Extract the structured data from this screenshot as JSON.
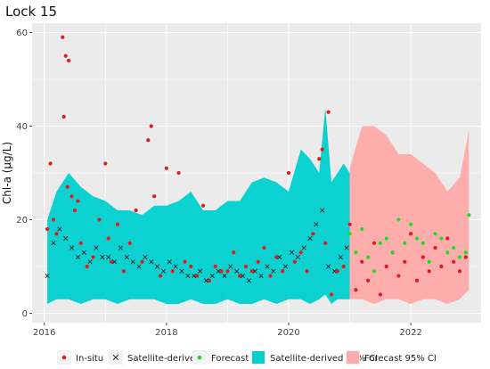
{
  "chart_data": {
    "type": "scatter",
    "title": "Lock 15",
    "xlabel": "",
    "ylabel": "Chl-a (µg/L)",
    "xlim": [
      2015.8,
      2023.15
    ],
    "ylim": [
      -2,
      62
    ],
    "x_ticks": [
      2016,
      2018,
      2020,
      2022
    ],
    "x_tick_labels": [
      "2016",
      "2018",
      "2020",
      "2022"
    ],
    "y_ticks": [
      0,
      20,
      40,
      60
    ],
    "y_tick_labels": [
      "0",
      "20",
      "40",
      "60"
    ],
    "grid": true,
    "legend_position": "bottom",
    "legend": [
      {
        "label": "In-situ",
        "kind": "point",
        "color": "#e41a1c"
      },
      {
        "label": "Satellite-derived",
        "kind": "cross",
        "color": "#222222"
      },
      {
        "label": "Forecast",
        "kind": "point",
        "color": "#22dd22"
      },
      {
        "label": "Satellite-derived 95% CI",
        "kind": "band",
        "color": "#00d0d0"
      },
      {
        "label": "Forecast 95% CI",
        "kind": "band",
        "color": "#ffaaaa"
      }
    ],
    "series": [
      {
        "name": "Satellite-derived 95% CI",
        "kind": "band",
        "color": "#00d0d0",
        "x": [
          2016.05,
          2016.2,
          2016.4,
          2016.6,
          2016.8,
          2017.0,
          2017.2,
          2017.4,
          2017.6,
          2017.8,
          2018.0,
          2018.2,
          2018.4,
          2018.6,
          2018.8,
          2019.0,
          2019.2,
          2019.4,
          2019.6,
          2019.8,
          2020.0,
          2020.2,
          2020.35,
          2020.5,
          2020.6,
          2020.7,
          2020.8,
          2020.9,
          2021.0
        ],
        "lower": [
          2,
          3,
          3,
          2,
          3,
          3,
          2,
          3,
          3,
          3,
          2,
          2,
          3,
          2,
          2,
          3,
          2,
          2,
          3,
          2,
          3,
          3,
          2,
          3,
          4,
          2,
          3,
          3,
          3
        ],
        "upper": [
          20,
          26,
          30,
          27,
          25,
          24,
          22,
          22,
          21,
          23,
          23,
          24,
          26,
          22,
          22,
          24,
          24,
          28,
          29,
          28,
          26,
          35,
          33,
          30,
          44,
          28,
          30,
          32,
          30
        ]
      },
      {
        "name": "Forecast 95% CI",
        "kind": "band",
        "color": "#ffaaaa",
        "x": [
          2021.0,
          2021.2,
          2021.4,
          2021.6,
          2021.8,
          2022.0,
          2022.2,
          2022.4,
          2022.6,
          2022.8,
          2022.95
        ],
        "lower": [
          3,
          3,
          2,
          3,
          3,
          2,
          3,
          3,
          2,
          3,
          5
        ],
        "upper": [
          31,
          40,
          40,
          38,
          34,
          34,
          32,
          30,
          26,
          29,
          39
        ]
      },
      {
        "name": "Satellite-derived",
        "kind": "cross",
        "color": "#222222",
        "x": [
          2016.05,
          2016.15,
          2016.25,
          2016.35,
          2016.45,
          2016.55,
          2016.65,
          2016.75,
          2016.85,
          2016.95,
          2017.05,
          2017.15,
          2017.25,
          2017.35,
          2017.45,
          2017.55,
          2017.65,
          2017.75,
          2017.85,
          2017.95,
          2018.05,
          2018.15,
          2018.25,
          2018.35,
          2018.45,
          2018.55,
          2018.65,
          2018.75,
          2018.85,
          2018.95,
          2019.05,
          2019.15,
          2019.25,
          2019.35,
          2019.45,
          2019.55,
          2019.65,
          2019.75,
          2019.85,
          2019.95,
          2020.05,
          2020.15,
          2020.25,
          2020.35,
          2020.45,
          2020.55,
          2020.65,
          2020.75,
          2020.85,
          2020.95
        ],
        "y": [
          8,
          15,
          18,
          16,
          14,
          12,
          13,
          11,
          14,
          12,
          12,
          11,
          14,
          12,
          11,
          10,
          12,
          11,
          10,
          9,
          11,
          10,
          9,
          8,
          8,
          9,
          7,
          8,
          9,
          8,
          10,
          9,
          8,
          7,
          9,
          8,
          10,
          9,
          12,
          10,
          13,
          12,
          14,
          16,
          19,
          22,
          10,
          9,
          12,
          14
        ]
      },
      {
        "name": "In-situ",
        "kind": "point",
        "color": "#e41a1c",
        "x": [
          2016.05,
          2016.1,
          2016.15,
          2016.2,
          2016.3,
          2016.32,
          2016.35,
          2016.38,
          2016.4,
          2016.45,
          2016.5,
          2016.55,
          2016.6,
          2016.7,
          2016.8,
          2016.9,
          2017.0,
          2017.05,
          2017.1,
          2017.2,
          2017.3,
          2017.4,
          2017.5,
          2017.6,
          2017.7,
          2017.75,
          2017.8,
          2017.9,
          2018.0,
          2018.1,
          2018.2,
          2018.3,
          2018.4,
          2018.5,
          2018.6,
          2018.7,
          2018.8,
          2018.9,
          2019.0,
          2019.1,
          2019.2,
          2019.3,
          2019.4,
          2019.5,
          2019.6,
          2019.7,
          2019.8,
          2019.9,
          2020.0,
          2020.1,
          2020.2,
          2020.3,
          2020.4,
          2020.5,
          2020.55,
          2020.6,
          2020.65,
          2020.7,
          2020.8,
          2020.9,
          2021.0,
          2021.1,
          2021.2,
          2021.3,
          2021.4,
          2021.5,
          2021.6,
          2021.7,
          2021.8,
          2021.9,
          2022.0,
          2022.1,
          2022.2,
          2022.3,
          2022.4,
          2022.5,
          2022.6,
          2022.7,
          2022.8,
          2022.9
        ],
        "y": [
          18,
          32,
          20,
          17,
          59,
          42,
          55,
          27,
          54,
          25,
          22,
          24,
          15,
          10,
          12,
          20,
          32,
          16,
          11,
          19,
          9,
          15,
          22,
          11,
          37,
          40,
          25,
          8,
          31,
          9,
          30,
          11,
          10,
          8,
          23,
          7,
          10,
          9,
          9,
          13,
          8,
          10,
          9,
          11,
          14,
          8,
          12,
          9,
          30,
          11,
          13,
          9,
          17,
          33,
          35,
          15,
          43,
          4,
          9,
          10,
          19,
          5,
          11,
          7,
          15,
          4,
          10,
          13,
          8,
          11,
          17,
          7,
          12,
          9,
          14,
          10,
          16,
          11,
          9,
          12
        ]
      },
      {
        "name": "Forecast",
        "kind": "point",
        "color": "#22dd22",
        "x": [
          2021.0,
          2021.1,
          2021.2,
          2021.3,
          2021.4,
          2021.5,
          2021.6,
          2021.7,
          2021.8,
          2021.9,
          2022.0,
          2022.1,
          2022.2,
          2022.3,
          2022.4,
          2022.5,
          2022.6,
          2022.7,
          2022.8,
          2022.9,
          2022.95
        ],
        "y": [
          17,
          13,
          18,
          12,
          9,
          15,
          16,
          13,
          20,
          15,
          19,
          16,
          15,
          11,
          17,
          16,
          13,
          14,
          12,
          13,
          21
        ]
      }
    ]
  }
}
